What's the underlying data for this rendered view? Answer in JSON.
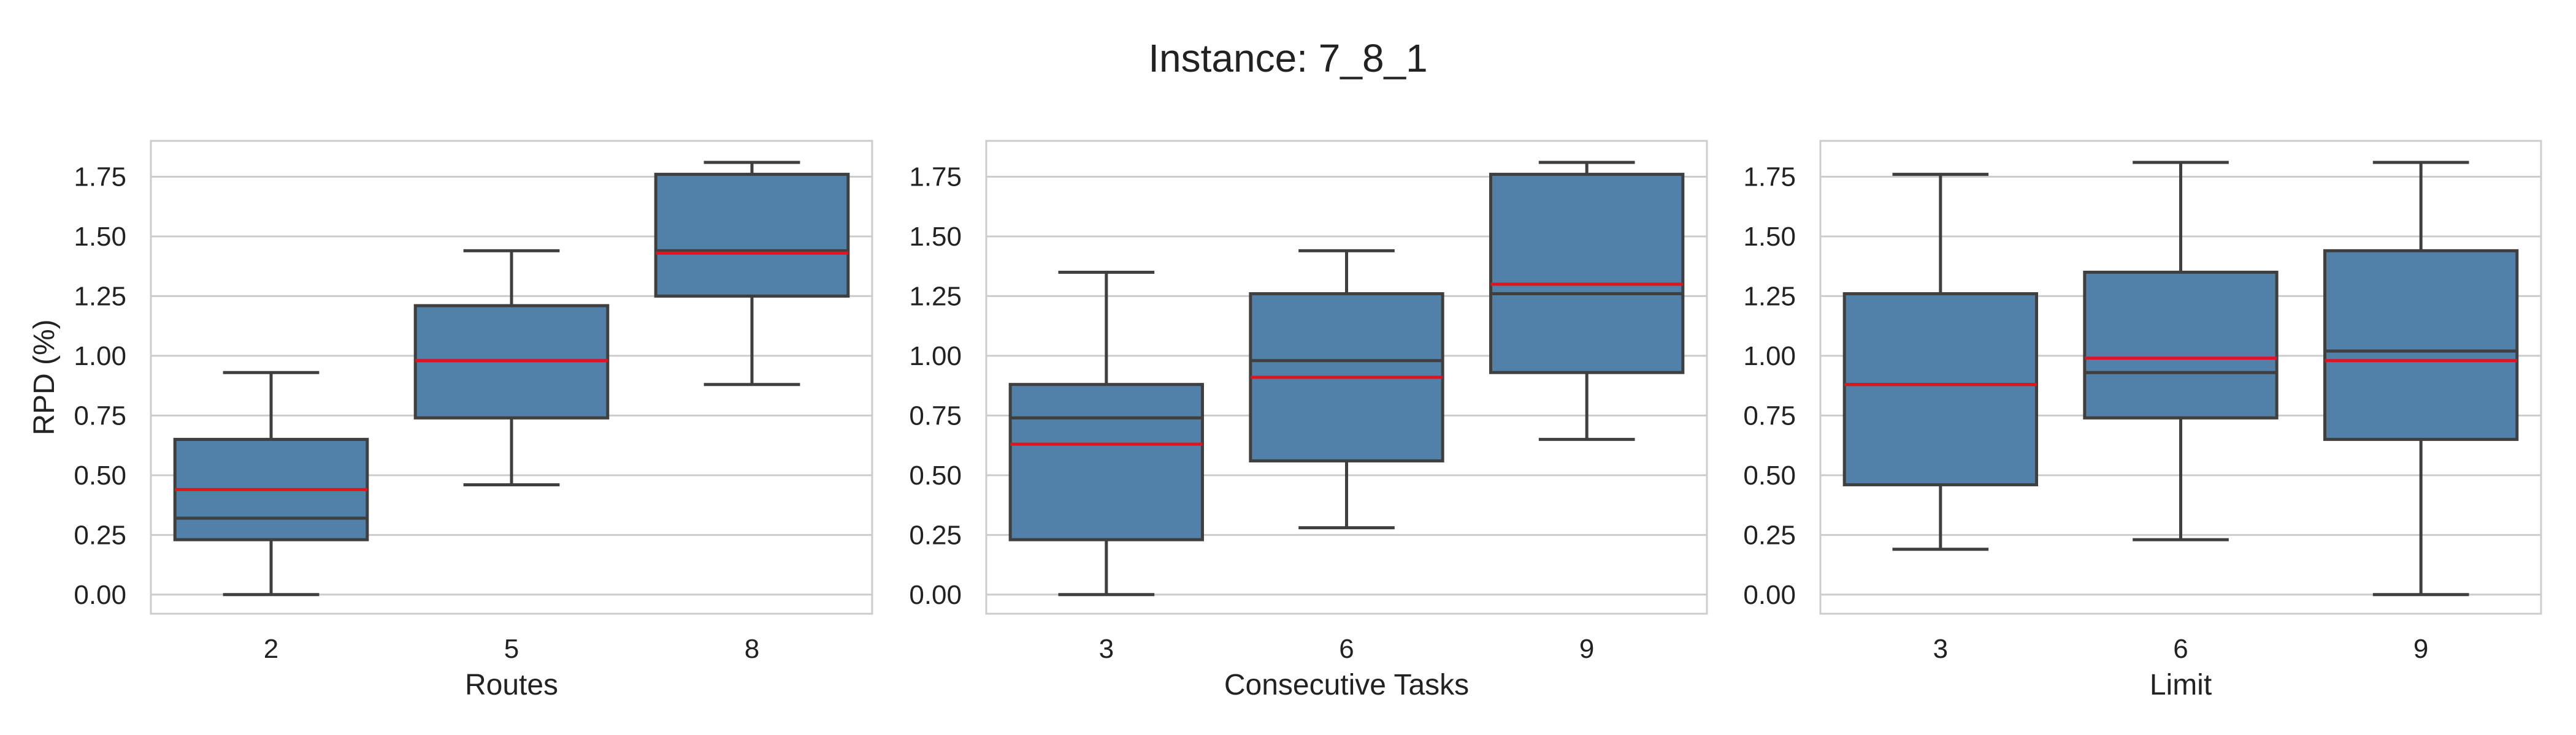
{
  "figure": {
    "title": "Instance: 7_8_1"
  },
  "colors": {
    "box": "#5181a8",
    "box_edge": "#3f3f3f",
    "mean_line": "#e0141e",
    "median_line": "#3f3f3f",
    "grid": "#cccccc",
    "frame": "#cccccc"
  },
  "chart_data": [
    {
      "type": "box",
      "xlabel": "Routes",
      "ylabel": "RPD (%)",
      "ylim": [
        -0.08,
        1.9
      ],
      "yticks": [
        "0.00",
        "0.25",
        "0.50",
        "0.75",
        "1.00",
        "1.25",
        "1.50",
        "1.75"
      ],
      "grid": true,
      "categories": [
        "2",
        "5",
        "8"
      ],
      "boxes": [
        {
          "whisker_low": 0.0,
          "q1": 0.23,
          "median": 0.32,
          "mean": 0.44,
          "q3": 0.65,
          "whisker_high": 0.93
        },
        {
          "whisker_low": 0.46,
          "q1": 0.74,
          "median": 0.98,
          "mean": 0.98,
          "q3": 1.21,
          "whisker_high": 1.44
        },
        {
          "whisker_low": 0.88,
          "q1": 1.25,
          "median": 1.44,
          "mean": 1.43,
          "q3": 1.76,
          "whisker_high": 1.81
        }
      ]
    },
    {
      "type": "box",
      "xlabel": "Consecutive Tasks",
      "ylabel": "",
      "ylim": [
        -0.08,
        1.9
      ],
      "yticks": [
        "0.00",
        "0.25",
        "0.50",
        "0.75",
        "1.00",
        "1.25",
        "1.50",
        "1.75"
      ],
      "grid": true,
      "categories": [
        "3",
        "6",
        "9"
      ],
      "boxes": [
        {
          "whisker_low": 0.0,
          "q1": 0.23,
          "median": 0.74,
          "mean": 0.63,
          "q3": 0.88,
          "whisker_high": 1.35
        },
        {
          "whisker_low": 0.28,
          "q1": 0.56,
          "median": 0.98,
          "mean": 0.91,
          "q3": 1.26,
          "whisker_high": 1.44
        },
        {
          "whisker_low": 0.65,
          "q1": 0.93,
          "median": 1.26,
          "mean": 1.3,
          "q3": 1.76,
          "whisker_high": 1.81
        }
      ]
    },
    {
      "type": "box",
      "xlabel": "Limit",
      "ylabel": "",
      "ylim": [
        -0.08,
        1.9
      ],
      "yticks": [
        "0.00",
        "0.25",
        "0.50",
        "0.75",
        "1.00",
        "1.25",
        "1.50",
        "1.75"
      ],
      "grid": true,
      "categories": [
        "3",
        "6",
        "9"
      ],
      "boxes": [
        {
          "whisker_low": 0.19,
          "q1": 0.46,
          "median": 0.88,
          "mean": 0.88,
          "q3": 1.26,
          "whisker_high": 1.76
        },
        {
          "whisker_low": 0.23,
          "q1": 0.74,
          "median": 0.93,
          "mean": 0.99,
          "q3": 1.35,
          "whisker_high": 1.81
        },
        {
          "whisker_low": 0.0,
          "q1": 0.65,
          "median": 1.02,
          "mean": 0.98,
          "q3": 1.44,
          "whisker_high": 1.81
        }
      ]
    }
  ]
}
